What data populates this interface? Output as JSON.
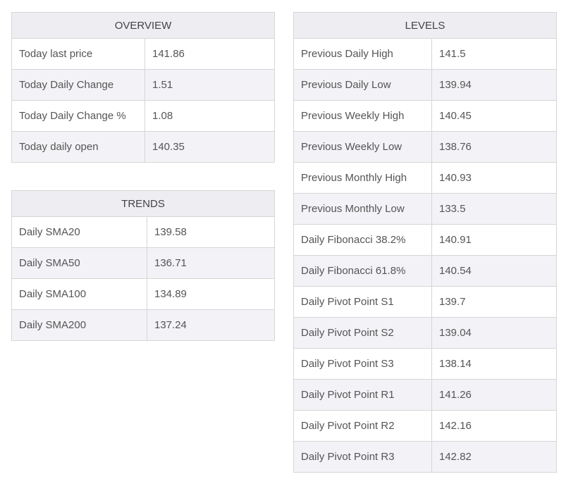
{
  "overview": {
    "title": "OVERVIEW",
    "rows": [
      {
        "label": "Today last price",
        "value": "141.86"
      },
      {
        "label": "Today Daily Change",
        "value": "1.51"
      },
      {
        "label": "Today Daily Change %",
        "value": "1.08"
      },
      {
        "label": "Today daily open",
        "value": "140.35"
      }
    ]
  },
  "trends": {
    "title": "TRENDS",
    "rows": [
      {
        "label": "Daily SMA20",
        "value": "139.58"
      },
      {
        "label": "Daily SMA50",
        "value": "136.71"
      },
      {
        "label": "Daily SMA100",
        "value": "134.89"
      },
      {
        "label": "Daily SMA200",
        "value": "137.24"
      }
    ]
  },
  "levels": {
    "title": "LEVELS",
    "rows": [
      {
        "label": "Previous Daily High",
        "value": "141.5"
      },
      {
        "label": "Previous Daily Low",
        "value": "139.94"
      },
      {
        "label": "Previous Weekly High",
        "value": "140.45"
      },
      {
        "label": "Previous Weekly Low",
        "value": "138.76"
      },
      {
        "label": "Previous Monthly High",
        "value": "140.93"
      },
      {
        "label": "Previous Monthly Low",
        "value": "133.5"
      },
      {
        "label": "Daily Fibonacci 38.2%",
        "value": "140.91"
      },
      {
        "label": "Daily Fibonacci 61.8%",
        "value": "140.54"
      },
      {
        "label": "Daily Pivot Point S1",
        "value": "139.7"
      },
      {
        "label": "Daily Pivot Point S2",
        "value": "139.04"
      },
      {
        "label": "Daily Pivot Point S3",
        "value": "138.14"
      },
      {
        "label": "Daily Pivot Point R1",
        "value": "141.26"
      },
      {
        "label": "Daily Pivot Point R2",
        "value": "142.16"
      },
      {
        "label": "Daily Pivot Point R3",
        "value": "142.82"
      }
    ]
  }
}
